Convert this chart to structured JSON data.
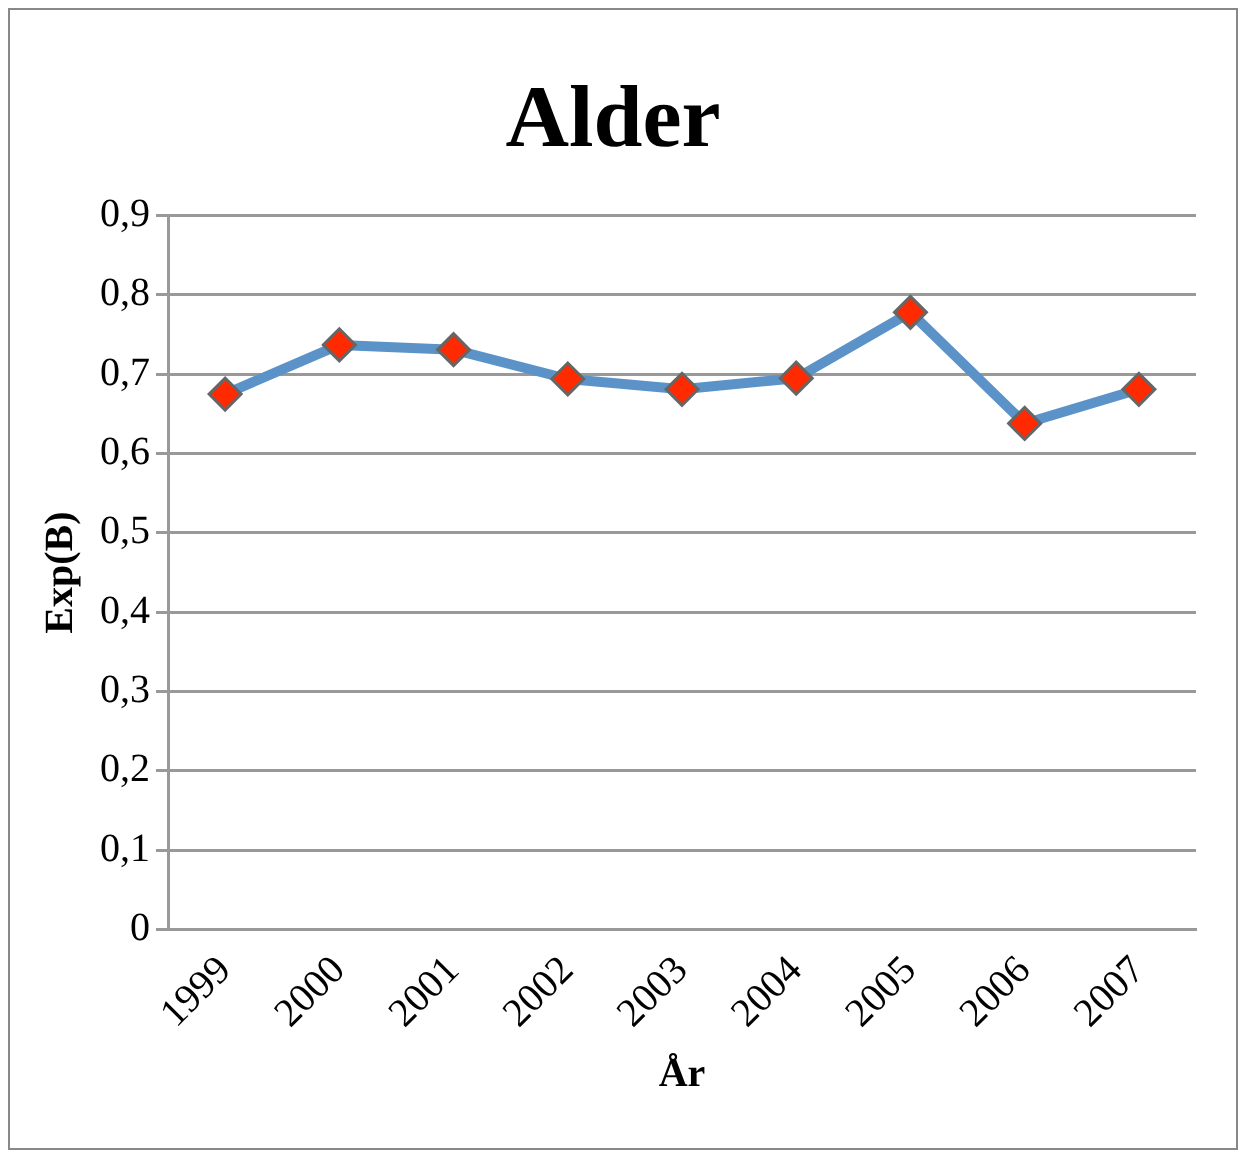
{
  "chart_data": {
    "type": "line",
    "title": "Alder",
    "xlabel": "År",
    "ylabel": "Exp(B)",
    "categories": [
      "1999",
      "2000",
      "2001",
      "2002",
      "2003",
      "2004",
      "2005",
      "2006",
      "2007"
    ],
    "series": [
      {
        "color": "#5b93c9",
        "colors": [
          "#ff2a00",
          "#ff2a00",
          "#ff2a00",
          "#ff2a00",
          "#ff2a00",
          "#ff2a00",
          "#ff2a00",
          "#ff2a00",
          "#ff2a00"
        ],
        "values": [
          0.675,
          0.737,
          0.731,
          0.694,
          0.681,
          0.695,
          0.778,
          0.638,
          0.681
        ]
      }
    ],
    "ylim": [
      0,
      0.9
    ],
    "yticks": [
      {
        "value": 0,
        "label": "0"
      },
      {
        "value": 0.1,
        "label": "0,1"
      },
      {
        "value": 0.2,
        "label": "0,2"
      },
      {
        "value": 0.3,
        "label": "0,3"
      },
      {
        "value": 0.4,
        "label": "0,4"
      },
      {
        "value": 0.5,
        "label": "0,5"
      },
      {
        "value": 0.6,
        "label": "0,6"
      },
      {
        "value": 0.7,
        "label": "0,7"
      },
      {
        "value": 0.8,
        "label": "0,8"
      },
      {
        "value": 0.9,
        "label": "0,9"
      }
    ],
    "grid": "y",
    "legend": false,
    "marker": "diamond",
    "line_style": "solid"
  }
}
